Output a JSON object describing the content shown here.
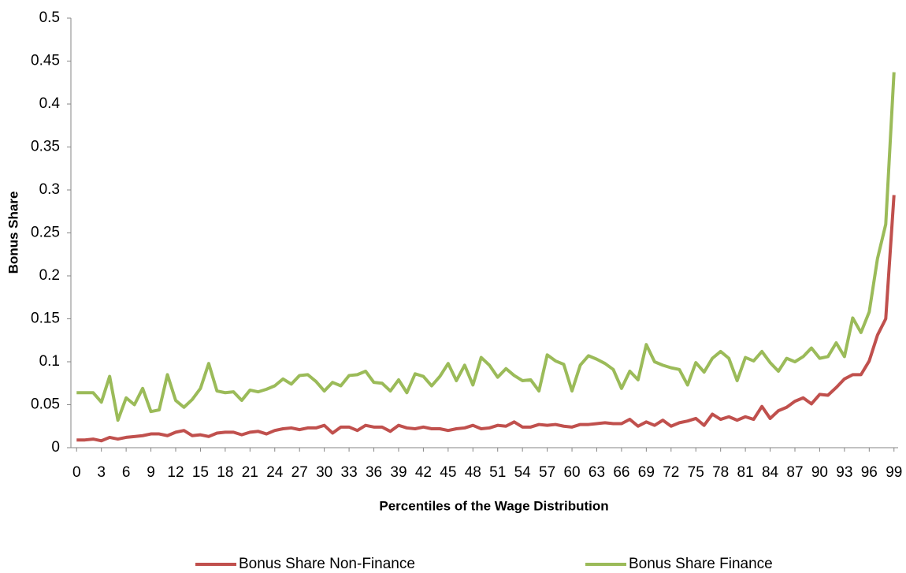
{
  "chart_data": {
    "type": "line",
    "y_label": "Bonus Share",
    "x_label": "Percentiles of the Wage Distribution",
    "x": [
      0,
      1,
      2,
      3,
      4,
      5,
      6,
      7,
      8,
      9,
      10,
      11,
      12,
      13,
      14,
      15,
      16,
      17,
      18,
      19,
      20,
      21,
      22,
      23,
      24,
      25,
      26,
      27,
      28,
      29,
      30,
      31,
      32,
      33,
      34,
      35,
      36,
      37,
      38,
      39,
      40,
      41,
      42,
      43,
      44,
      45,
      46,
      47,
      48,
      49,
      50,
      51,
      52,
      53,
      54,
      55,
      56,
      57,
      58,
      59,
      60,
      61,
      62,
      63,
      64,
      65,
      66,
      67,
      68,
      69,
      70,
      71,
      72,
      73,
      74,
      75,
      76,
      77,
      78,
      79,
      80,
      81,
      82,
      83,
      84,
      85,
      86,
      87,
      88,
      89,
      90,
      91,
      92,
      93,
      94,
      95,
      96,
      97,
      98,
      99
    ],
    "xlim": [
      -0.5,
      99.5
    ],
    "xticks": [
      0,
      3,
      6,
      9,
      12,
      15,
      18,
      21,
      24,
      27,
      30,
      33,
      36,
      39,
      42,
      45,
      48,
      51,
      54,
      57,
      60,
      63,
      66,
      69,
      72,
      75,
      78,
      81,
      84,
      87,
      90,
      93,
      96,
      99
    ],
    "ylim": [
      0,
      0.5
    ],
    "yticks": [
      0,
      0.05,
      0.1,
      0.15,
      0.2,
      0.25,
      0.3,
      0.35,
      0.4,
      0.45,
      0.5
    ],
    "grid": false,
    "legend": "bottom",
    "series": [
      {
        "name": "Bonus Share Non-Finance",
        "color": "#c0504d",
        "values": [
          0.009,
          0.009,
          0.01,
          0.008,
          0.012,
          0.01,
          0.012,
          0.013,
          0.014,
          0.016,
          0.016,
          0.014,
          0.018,
          0.02,
          0.014,
          0.015,
          0.013,
          0.017,
          0.018,
          0.018,
          0.015,
          0.018,
          0.019,
          0.016,
          0.02,
          0.022,
          0.023,
          0.021,
          0.023,
          0.023,
          0.026,
          0.017,
          0.024,
          0.024,
          0.02,
          0.026,
          0.024,
          0.024,
          0.019,
          0.026,
          0.023,
          0.022,
          0.024,
          0.022,
          0.022,
          0.02,
          0.022,
          0.023,
          0.026,
          0.022,
          0.023,
          0.026,
          0.025,
          0.03,
          0.024,
          0.024,
          0.027,
          0.026,
          0.027,
          0.025,
          0.024,
          0.027,
          0.027,
          0.028,
          0.029,
          0.028,
          0.028,
          0.033,
          0.025,
          0.03,
          0.026,
          0.032,
          0.025,
          0.029,
          0.031,
          0.034,
          0.026,
          0.039,
          0.033,
          0.036,
          0.032,
          0.036,
          0.033,
          0.048,
          0.034,
          0.043,
          0.047,
          0.054,
          0.058,
          0.051,
          0.062,
          0.061,
          0.07,
          0.08,
          0.085,
          0.085,
          0.101,
          0.131,
          0.15,
          0.294
        ]
      },
      {
        "name": "Bonus Share Finance",
        "color": "#9bbb59",
        "values": [
          0.064,
          0.064,
          0.064,
          0.053,
          0.083,
          0.032,
          0.058,
          0.05,
          0.069,
          0.042,
          0.044,
          0.085,
          0.055,
          0.047,
          0.056,
          0.069,
          0.098,
          0.066,
          0.064,
          0.065,
          0.055,
          0.067,
          0.065,
          0.068,
          0.072,
          0.08,
          0.074,
          0.084,
          0.085,
          0.077,
          0.066,
          0.076,
          0.072,
          0.084,
          0.085,
          0.089,
          0.076,
          0.075,
          0.066,
          0.079,
          0.064,
          0.086,
          0.083,
          0.072,
          0.083,
          0.098,
          0.078,
          0.096,
          0.073,
          0.105,
          0.096,
          0.082,
          0.092,
          0.084,
          0.078,
          0.079,
          0.066,
          0.108,
          0.101,
          0.097,
          0.066,
          0.096,
          0.107,
          0.103,
          0.098,
          0.091,
          0.069,
          0.089,
          0.079,
          0.12,
          0.1,
          0.096,
          0.093,
          0.091,
          0.073,
          0.099,
          0.088,
          0.104,
          0.112,
          0.104,
          0.078,
          0.105,
          0.101,
          0.112,
          0.099,
          0.089,
          0.104,
          0.1,
          0.106,
          0.116,
          0.104,
          0.106,
          0.122,
          0.106,
          0.151,
          0.134,
          0.158,
          0.22,
          0.26,
          0.437
        ]
      }
    ]
  }
}
